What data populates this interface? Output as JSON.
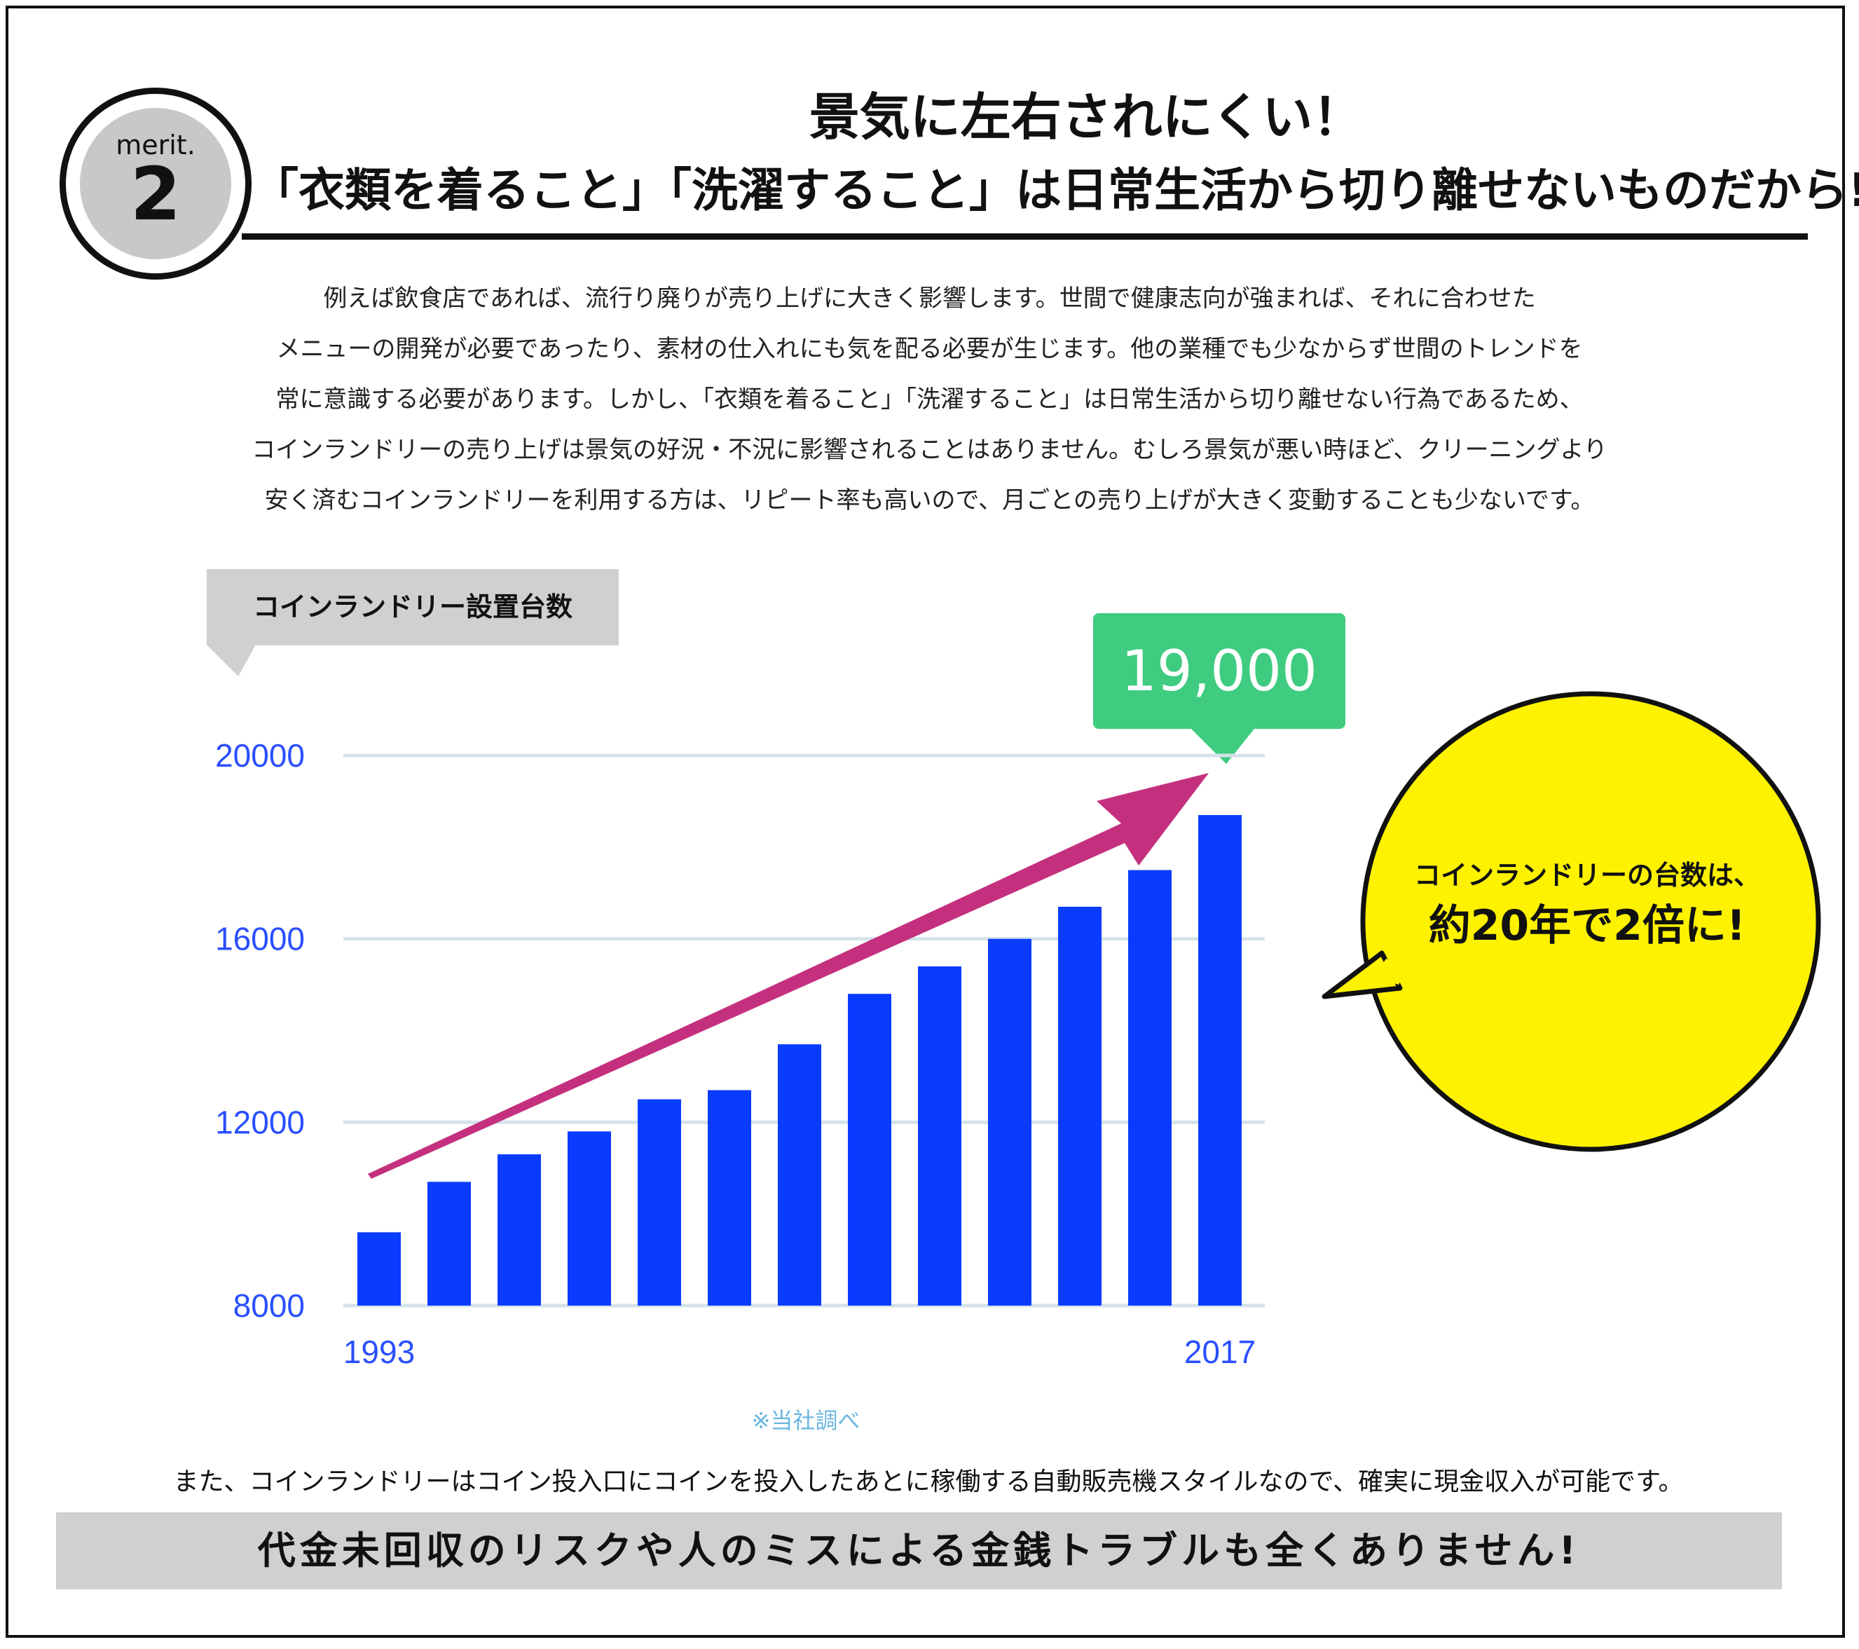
{
  "badge": {
    "label": "merit.",
    "number": "2"
  },
  "heading": {
    "line1": "景気に左右されにくい！",
    "line2": "「衣類を着ること」「洗濯すること」は日常生活から切り離せないものだから!"
  },
  "intro": [
    "例えば飲食店であれば、流行り廃りが売り上げに大きく影響します。世間で健康志向が強まれば、それに合わせた",
    "メニューの開発が必要であったり、素材の仕入れにも気を配る必要が生じます。他の業種でも少なからず世間のトレンドを",
    "常に意識する必要があります。しかし、「衣類を着ること」「洗濯すること」は日常生活から切り離せない行為であるため、",
    "コインランドリーの売り上げは景気の好況・不況に影響されることはありません。むしろ景気が悪い時ほど、クリーニングより",
    "安く済むコインランドリーを利用する方は、リピート率も高いので、月ごとの売り上げが大きく変動することも少ないです。"
  ],
  "callout": {
    "value": "19,000"
  },
  "chart_data": {
    "type": "bar",
    "title": "コインランドリー設置台数",
    "categories": [
      "1993",
      "",
      "",
      "",
      "",
      "",
      "",
      "",
      "",
      "",
      "",
      "",
      "2017"
    ],
    "values": [
      9600,
      10700,
      11300,
      11800,
      12500,
      12700,
      13700,
      14800,
      15400,
      16000,
      16700,
      17500,
      18700
    ],
    "ylim": [
      8000,
      20000
    ],
    "yticks": [
      "8000",
      "12000",
      "16000",
      "20000"
    ],
    "grid": true,
    "bar_color": "#0a3cff",
    "arrow_color": "#c4307e",
    "note": "※当社調べ"
  },
  "bubble": {
    "line1": "コインランドリーの台数は、",
    "line2": "約20年で2倍に!"
  },
  "footer": {
    "text": "また、コインランドリーはコイン投入口にコインを投入したあとに稼働する自動販売機スタイルなので、確実に現金収入が可能です。",
    "banner": "代金未回収のリスクや人のミスによる金銭トラブルも全くありません!"
  }
}
